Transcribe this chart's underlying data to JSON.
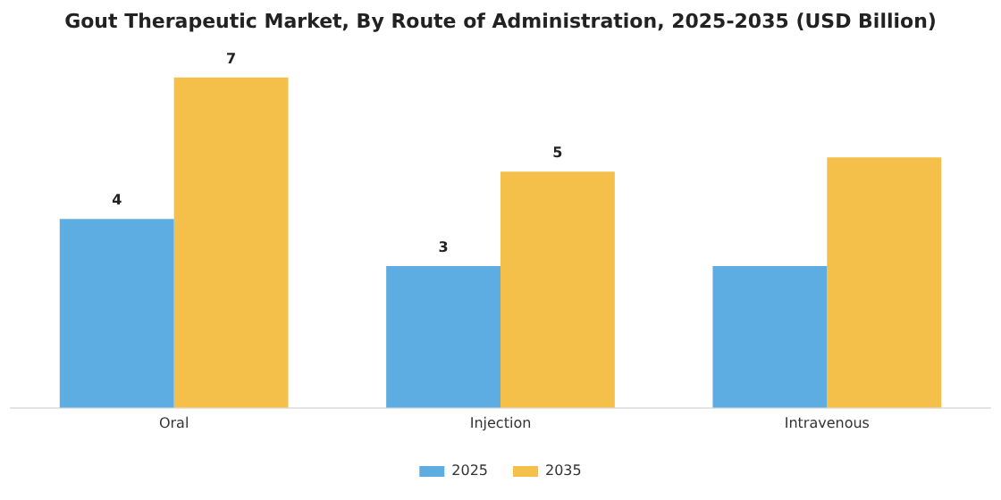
{
  "chart_data": {
    "type": "bar",
    "title": "Gout Therapeutic Market, By Route of Administration, 2025-2035 (USD Billion)",
    "categories": [
      "Oral",
      "Injection",
      "Intravenous"
    ],
    "series": [
      {
        "name": "2025",
        "color": "#5dade2",
        "values": [
          4,
          3,
          3
        ],
        "value_labels": [
          "4",
          "3",
          null
        ]
      },
      {
        "name": "2035",
        "color": "#f5c04a",
        "values": [
          7,
          5,
          5.3
        ],
        "value_labels": [
          "7",
          "5",
          null
        ]
      }
    ],
    "tick_labels": "x",
    "grid": false,
    "legend": "bottom"
  }
}
